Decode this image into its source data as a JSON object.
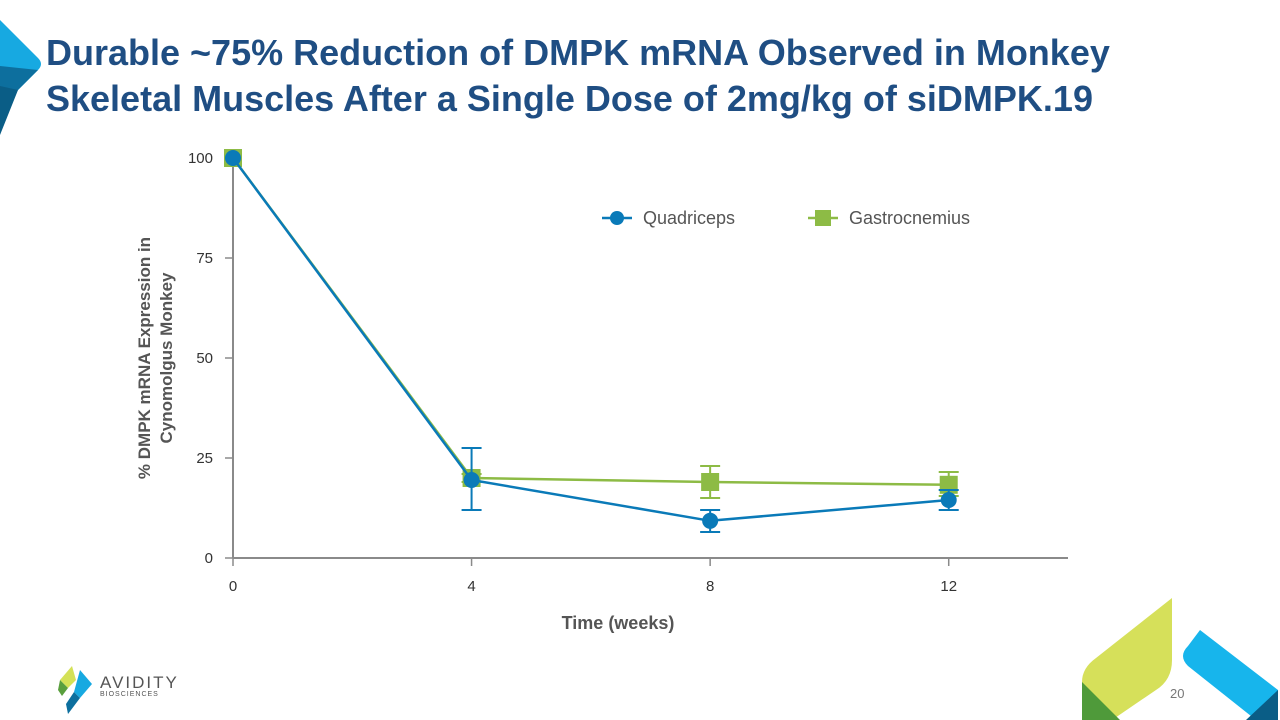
{
  "slide": {
    "title_line1": "Durable ~75% Reduction of DMPK mRNA Observed in Monkey",
    "title_line2": "Skeletal Muscles After a Single Dose of 2mg/kg of siDMPK.19",
    "page_number": "20",
    "brand_name": "AVIDITY",
    "brand_sub": "BIOSCIENCES",
    "colors": {
      "title": "#1f4e83",
      "quadriceps": "#0a7ab8",
      "gastrocnemius": "#8dbb45"
    }
  },
  "chart_data": {
    "type": "line",
    "title": "",
    "xlabel": "Time (weeks)",
    "ylabel_line1": "% DMPK mRNA Expression in",
    "ylabel_line2": "Cynomolgus Monkey",
    "x": [
      0,
      4,
      8,
      12
    ],
    "xticks": [
      "0",
      "4",
      "8",
      "12"
    ],
    "yticks": [
      "0",
      "25",
      "50",
      "75",
      "100"
    ],
    "xlim": [
      0,
      14
    ],
    "ylim": [
      0,
      100
    ],
    "grid": false,
    "legend_position": "top-right",
    "series": [
      {
        "name": "Quadriceps",
        "marker": "circle",
        "values": [
          100,
          19.5,
          9.3,
          14.5
        ],
        "err_low": [
          100,
          12,
          6.5,
          12
        ],
        "err_high": [
          100,
          27.5,
          12,
          17
        ]
      },
      {
        "name": "Gastrocnemius",
        "marker": "square",
        "values": [
          100,
          20,
          19,
          18.3
        ],
        "err_low": [
          100,
          19,
          15,
          15.5
        ],
        "err_high": [
          100,
          21,
          23,
          21.5
        ]
      }
    ]
  }
}
